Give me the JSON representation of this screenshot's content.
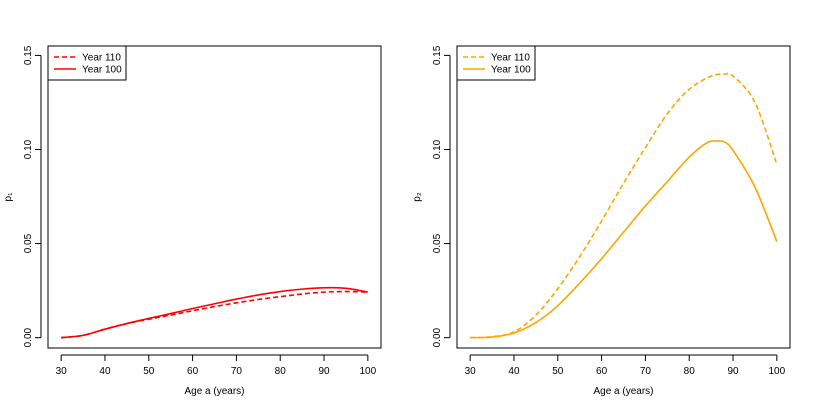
{
  "chart_data": [
    {
      "type": "line",
      "title": "",
      "xlabel": "Age a (years)",
      "ylabel": "p₁",
      "xlim": [
        27,
        103
      ],
      "ylim": [
        -0.0055,
        0.155
      ],
      "x_ticks": [
        30,
        40,
        50,
        60,
        70,
        80,
        90,
        100
      ],
      "y_ticks": [
        0.0,
        0.05,
        0.1,
        0.15
      ],
      "y_tick_labels": [
        "0.00",
        "0.05",
        "0.10",
        "0.15"
      ],
      "grid": false,
      "legend_position": "top-left",
      "color": "#ff0000",
      "series": [
        {
          "name": "Year 110",
          "dash": "dashed",
          "x": [
            30,
            35,
            40,
            45,
            50,
            55,
            60,
            65,
            70,
            75,
            80,
            85,
            90,
            95,
            100
          ],
          "y": [
            0.0,
            0.0012,
            0.0045,
            0.0075,
            0.0098,
            0.012,
            0.0143,
            0.0165,
            0.0185,
            0.0203,
            0.0218,
            0.0232,
            0.0242,
            0.0245,
            0.0242
          ]
        },
        {
          "name": "Year 100",
          "dash": "solid",
          "x": [
            30,
            35,
            40,
            45,
            50,
            55,
            60,
            65,
            70,
            75,
            80,
            85,
            90,
            95,
            100
          ],
          "y": [
            0.0,
            0.0012,
            0.0045,
            0.0075,
            0.0102,
            0.0128,
            0.0155,
            0.018,
            0.0205,
            0.0227,
            0.0245,
            0.0258,
            0.0265,
            0.0262,
            0.0242
          ]
        }
      ]
    },
    {
      "type": "line",
      "title": "",
      "xlabel": "Age a (years)",
      "ylabel": "p₂",
      "xlim": [
        27,
        103
      ],
      "ylim": [
        -0.0055,
        0.155
      ],
      "x_ticks": [
        30,
        40,
        50,
        60,
        70,
        80,
        90,
        100
      ],
      "y_ticks": [
        0.0,
        0.05,
        0.1,
        0.15
      ],
      "y_tick_labels": [
        "0.00",
        "0.05",
        "0.10",
        "0.15"
      ],
      "grid": false,
      "legend_position": "top-left",
      "color": "#ffa500",
      "series": [
        {
          "name": "Year 110",
          "dash": "dashed",
          "x": [
            30,
            35,
            40,
            45,
            50,
            55,
            60,
            65,
            70,
            75,
            80,
            85,
            88,
            90,
            95,
            100
          ],
          "y": [
            0.0,
            0.0005,
            0.003,
            0.012,
            0.026,
            0.043,
            0.062,
            0.082,
            0.101,
            0.119,
            0.132,
            0.139,
            0.14,
            0.139,
            0.125,
            0.092
          ]
        },
        {
          "name": "Year 100",
          "dash": "solid",
          "x": [
            30,
            35,
            40,
            45,
            50,
            55,
            60,
            65,
            70,
            75,
            80,
            84,
            86,
            88,
            90,
            95,
            100
          ],
          "y": [
            0.0,
            0.0003,
            0.0025,
            0.008,
            0.017,
            0.029,
            0.042,
            0.056,
            0.07,
            0.083,
            0.096,
            0.1035,
            0.1045,
            0.104,
            0.0995,
            0.08,
            0.051
          ]
        }
      ]
    }
  ]
}
